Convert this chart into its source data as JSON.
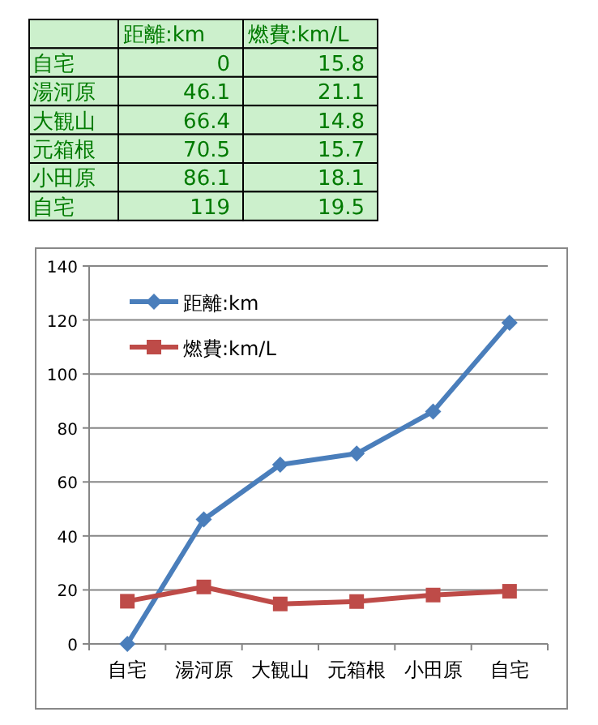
{
  "chart_data": [
    {
      "type": "heatmap",
      "color": "#ccf0cc",
      "categories": [
        "距離:km",
        "燃費:km/L"
      ],
      "y_categories": [
        "自宅",
        "湯河原",
        "大観山",
        "元箱根",
        "小田原",
        "自宅"
      ],
      "cells": [
        [
          0,
          15.8
        ],
        [
          46.1,
          21.1
        ],
        [
          66.4,
          14.8
        ],
        [
          70.5,
          15.7
        ],
        [
          86.1,
          18.1
        ],
        [
          119,
          19.5
        ]
      ],
      "data_labels": true
    },
    {
      "type": "line",
      "categories": [
        "自宅",
        "湯河原",
        "大観山",
        "元箱根",
        "小田原",
        "自宅"
      ],
      "series": [
        {
          "name": "距離:km",
          "color": "#4a7ebb",
          "marker": "diamond",
          "values": [
            0,
            46.1,
            66.4,
            70.5,
            86.1,
            119
          ]
        },
        {
          "name": "燃費:km/L",
          "color": "#be4b48",
          "marker": "square",
          "values": [
            15.8,
            21.1,
            14.8,
            15.7,
            18.1,
            19.5
          ]
        }
      ],
      "ylim": [
        0,
        140
      ],
      "yticks": [
        0,
        20,
        40,
        60,
        80,
        100,
        120,
        140
      ],
      "grid": "y",
      "legend": "top left"
    }
  ]
}
